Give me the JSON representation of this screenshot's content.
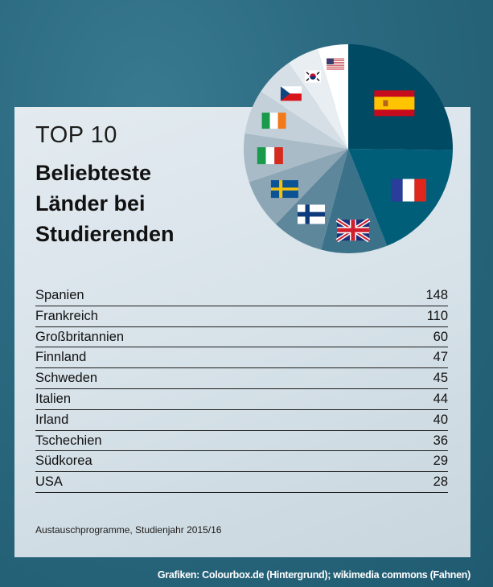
{
  "header": {
    "top_label": "TOP 10",
    "title_lines": [
      "Beliebteste",
      "Länder bei",
      "Studierenden"
    ]
  },
  "chart_data": {
    "type": "pie",
    "title": "TOP 10 Beliebteste Länder bei Studierenden",
    "start": "top",
    "direction": "clockwise",
    "categories": [
      "Spanien",
      "Frankreich",
      "Großbritannien",
      "Finnland",
      "Schweden",
      "Italien",
      "Irland",
      "Tschechien",
      "Südkorea",
      "USA"
    ],
    "values": [
      148,
      110,
      60,
      47,
      45,
      44,
      40,
      36,
      29,
      28
    ],
    "colors": [
      "#004a63",
      "#005e79",
      "#3b7289",
      "#5e879c",
      "#8da6b5",
      "#a8bbc7",
      "#c3d0d9",
      "#d6dfe6",
      "#e9eef2",
      "#ffffff"
    ],
    "icons": [
      "flag-spain",
      "flag-france",
      "flag-uk",
      "flag-finland",
      "flag-sweden",
      "flag-italy",
      "flag-ireland",
      "flag-czech",
      "flag-south-korea",
      "flag-usa"
    ]
  },
  "note": "Austauschprogramme, Studienjahr 2015/16",
  "credit": "Grafiken: Colourbox.de (Hintergrund); wikimedia commons (Fahnen)"
}
